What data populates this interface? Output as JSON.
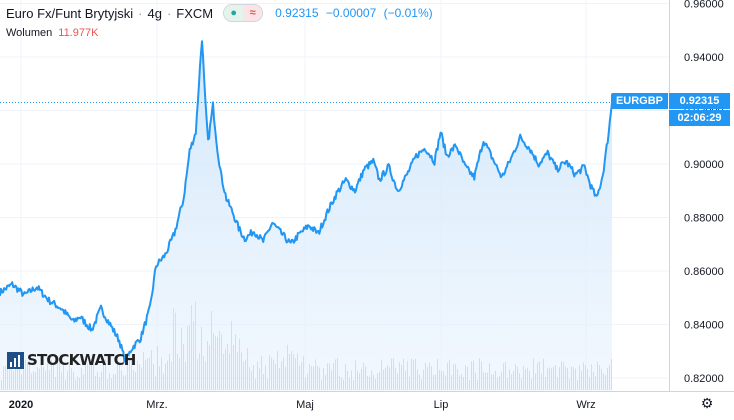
{
  "header": {
    "title": "Euro Fx/Funt Brytyjski",
    "interval": "4g",
    "exchange": "FXCM",
    "separator": "·",
    "last": "0.92315",
    "change": "−0.00007",
    "change_pct": "(−0.01%)"
  },
  "volume": {
    "label": "Wolumen",
    "value": "11.977K"
  },
  "logo_text": "STOCKWATCH",
  "symbol_tag": "EURGBP",
  "price_tag": "0.92315",
  "countdown_tag": "02:06:29",
  "colors": {
    "line": "#2196f3",
    "vol_up": "#26a69a",
    "vol_down": "#ef5350",
    "fill_top": "#cfe6fb"
  },
  "icons": {
    "settings": "gear-icon"
  },
  "chart_data": {
    "type": "area",
    "title": "",
    "xlabel": "",
    "ylabel": "",
    "y_ticks": [
      "0.82000",
      "0.84000",
      "0.86000",
      "0.88000",
      "0.90000",
      "0.92000",
      "0.94000",
      "0.96000"
    ],
    "x_ticks": [
      "2020",
      "Mrz.",
      "Maj",
      "Lip",
      "Wrz"
    ],
    "ylim": [
      0.82,
      0.96
    ],
    "xlim": [
      0,
      1
    ],
    "grid": true,
    "series": [
      {
        "name": "EURGBP",
        "points": [
          [
            0.0,
            0.852
          ],
          [
            0.02,
            0.855
          ],
          [
            0.04,
            0.851
          ],
          [
            0.06,
            0.854
          ],
          [
            0.08,
            0.849
          ],
          [
            0.1,
            0.846
          ],
          [
            0.12,
            0.841
          ],
          [
            0.13,
            0.843
          ],
          [
            0.15,
            0.838
          ],
          [
            0.165,
            0.846
          ],
          [
            0.18,
            0.84
          ],
          [
            0.195,
            0.834
          ],
          [
            0.205,
            0.826
          ],
          [
            0.215,
            0.831
          ],
          [
            0.23,
            0.835
          ],
          [
            0.245,
            0.846
          ],
          [
            0.255,
            0.862
          ],
          [
            0.27,
            0.866
          ],
          [
            0.285,
            0.874
          ],
          [
            0.3,
            0.887
          ],
          [
            0.31,
            0.905
          ],
          [
            0.32,
            0.912
          ],
          [
            0.325,
            0.93
          ],
          [
            0.33,
            0.947
          ],
          [
            0.335,
            0.925
          ],
          [
            0.34,
            0.908
          ],
          [
            0.348,
            0.922
          ],
          [
            0.355,
            0.906
          ],
          [
            0.362,
            0.895
          ],
          [
            0.37,
            0.887
          ],
          [
            0.38,
            0.882
          ],
          [
            0.39,
            0.876
          ],
          [
            0.4,
            0.872
          ],
          [
            0.415,
            0.875
          ],
          [
            0.43,
            0.871
          ],
          [
            0.445,
            0.878
          ],
          [
            0.46,
            0.874
          ],
          [
            0.475,
            0.87
          ],
          [
            0.49,
            0.874
          ],
          [
            0.505,
            0.877
          ],
          [
            0.52,
            0.874
          ],
          [
            0.535,
            0.882
          ],
          [
            0.55,
            0.889
          ],
          [
            0.565,
            0.894
          ],
          [
            0.58,
            0.89
          ],
          [
            0.595,
            0.898
          ],
          [
            0.61,
            0.901
          ],
          [
            0.62,
            0.894
          ],
          [
            0.635,
            0.899
          ],
          [
            0.65,
            0.89
          ],
          [
            0.665,
            0.896
          ],
          [
            0.68,
            0.903
          ],
          [
            0.695,
            0.906
          ],
          [
            0.71,
            0.901
          ],
          [
            0.72,
            0.912
          ],
          [
            0.73,
            0.903
          ],
          [
            0.745,
            0.907
          ],
          [
            0.76,
            0.899
          ],
          [
            0.775,
            0.895
          ],
          [
            0.79,
            0.909
          ],
          [
            0.805,
            0.902
          ],
          [
            0.82,
            0.895
          ],
          [
            0.835,
            0.902
          ],
          [
            0.85,
            0.91
          ],
          [
            0.865,
            0.906
          ],
          [
            0.88,
            0.9
          ],
          [
            0.895,
            0.904
          ],
          [
            0.91,
            0.898
          ],
          [
            0.925,
            0.901
          ],
          [
            0.94,
            0.896
          ],
          [
            0.955,
            0.899
          ],
          [
            0.965,
            0.892
          ],
          [
            0.975,
            0.887
          ],
          [
            0.985,
            0.896
          ],
          [
            0.993,
            0.909
          ],
          [
            1.0,
            0.923
          ]
        ]
      }
    ]
  }
}
